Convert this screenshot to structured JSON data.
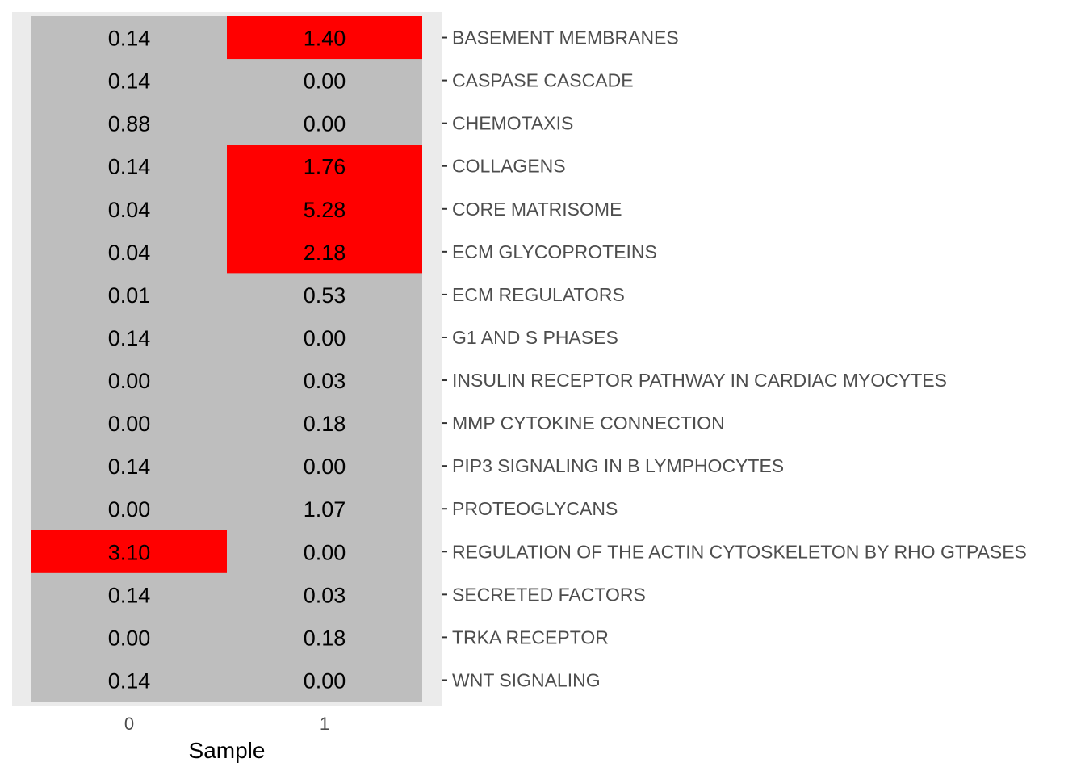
{
  "chart_data": {
    "type": "heatmap",
    "xlabel": "Sample",
    "columns": [
      "0",
      "1"
    ],
    "rows": [
      "BASEMENT MEMBRANES",
      "CASPASE CASCADE",
      "CHEMOTAXIS",
      "COLLAGENS",
      "CORE MATRISOME",
      "ECM GLYCOPROTEINS",
      "ECM REGULATORS",
      "G1 AND S PHASES",
      "INSULIN RECEPTOR PATHWAY IN CARDIAC MYOCYTES",
      "MMP CYTOKINE CONNECTION",
      "PIP3 SIGNALING IN B LYMPHOCYTES",
      "PROTEOGLYCANS",
      "REGULATION OF THE ACTIN CYTOSKELETON BY RHO GTPASES",
      "SECRETED FACTORS",
      "TRKA RECEPTOR",
      "WNT SIGNALING"
    ],
    "values": [
      [
        "0.14",
        "1.40"
      ],
      [
        "0.14",
        "0.00"
      ],
      [
        "0.88",
        "0.00"
      ],
      [
        "0.14",
        "1.76"
      ],
      [
        "0.04",
        "5.28"
      ],
      [
        "0.04",
        "2.18"
      ],
      [
        "0.01",
        "0.53"
      ],
      [
        "0.14",
        "0.00"
      ],
      [
        "0.00",
        "0.03"
      ],
      [
        "0.00",
        "0.18"
      ],
      [
        "0.14",
        "0.00"
      ],
      [
        "0.00",
        "1.07"
      ],
      [
        "3.10",
        "0.00"
      ],
      [
        "0.14",
        "0.03"
      ],
      [
        "0.00",
        "0.18"
      ],
      [
        "0.14",
        "0.00"
      ]
    ],
    "highlight_threshold": 1.3,
    "colors": {
      "panel_background": "#ebebeb",
      "cell_default": "#bebebe",
      "cell_highlight": "#ff0000",
      "tick_mark": "#333333"
    },
    "grid": false,
    "legend": "none"
  }
}
